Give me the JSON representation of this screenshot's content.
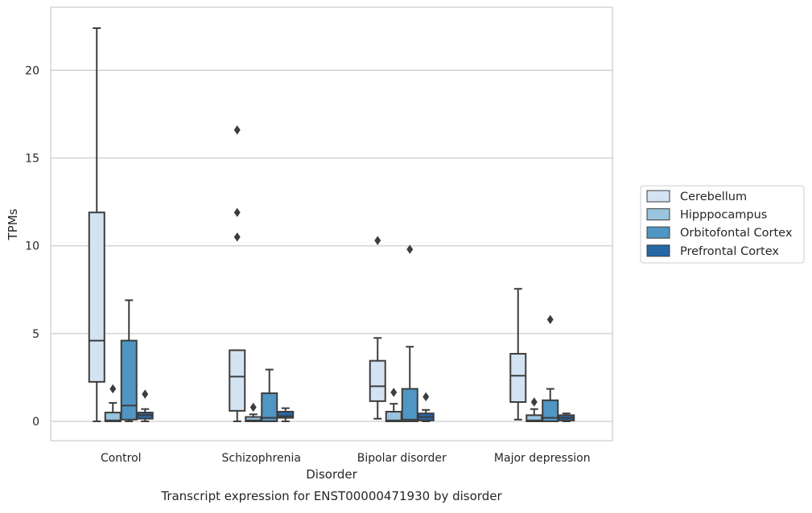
{
  "chart_data": {
    "type": "box",
    "title": "Transcript expression for ENST00000471930 by disorder",
    "xlabel": "Disorder",
    "ylabel": "TPMs",
    "ylim": [
      -1.1,
      23.4
    ],
    "yticks": [
      0,
      5,
      10,
      15,
      20
    ],
    "grid": "horizontal",
    "legend_position": "right",
    "categories": [
      "Control",
      "Schizophrenia",
      "Bipolar disorder",
      "Major depression"
    ],
    "series": [
      {
        "name": "Cerebellum",
        "color": "#d4e3f2",
        "boxes": [
          {
            "whislo": 0.0,
            "q1": 2.25,
            "med": 4.6,
            "q3": 11.9,
            "whishi": 22.4,
            "fliers": []
          },
          {
            "whislo": 0.0,
            "q1": 0.6,
            "med": 2.55,
            "q3": 4.05,
            "whishi": 4.05,
            "fliers": [
              10.5,
              11.9,
              16.6
            ]
          },
          {
            "whislo": 0.15,
            "q1": 1.15,
            "med": 2.0,
            "q3": 3.45,
            "whishi": 4.75,
            "fliers": [
              10.3
            ]
          },
          {
            "whislo": 0.1,
            "q1": 1.1,
            "med": 2.6,
            "q3": 3.85,
            "whishi": 7.55,
            "fliers": []
          }
        ]
      },
      {
        "name": "Hipppocampus",
        "color": "#9ac3dd",
        "boxes": [
          {
            "whislo": 0.0,
            "q1": 0.0,
            "med": 0.05,
            "q3": 0.5,
            "whishi": 1.05,
            "fliers": [
              1.85
            ]
          },
          {
            "whislo": 0.0,
            "q1": 0.0,
            "med": 0.05,
            "q3": 0.25,
            "whishi": 0.4,
            "fliers": [
              0.8
            ]
          },
          {
            "whislo": 0.0,
            "q1": 0.0,
            "med": 0.05,
            "q3": 0.55,
            "whishi": 1.0,
            "fliers": [
              1.65
            ]
          },
          {
            "whislo": 0.0,
            "q1": 0.0,
            "med": 0.05,
            "q3": 0.35,
            "whishi": 0.7,
            "fliers": [
              1.1
            ]
          }
        ]
      },
      {
        "name": "Orbitofontal Cortex",
        "color": "#5096c4",
        "boxes": [
          {
            "whislo": 0.0,
            "q1": 0.1,
            "med": 0.9,
            "q3": 4.6,
            "whishi": 6.9,
            "fliers": []
          },
          {
            "whislo": 0.0,
            "q1": 0.0,
            "med": 0.2,
            "q3": 1.6,
            "whishi": 2.95,
            "fliers": []
          },
          {
            "whislo": 0.0,
            "q1": 0.0,
            "med": 0.1,
            "q3": 1.85,
            "whishi": 4.25,
            "fliers": [
              9.8
            ]
          },
          {
            "whislo": 0.0,
            "q1": 0.0,
            "med": 0.2,
            "q3": 1.2,
            "whishi": 1.85,
            "fliers": [
              5.8
            ]
          }
        ]
      },
      {
        "name": "Prefrontal Cortex",
        "color": "#2667a8",
        "boxes": [
          {
            "whislo": 0.0,
            "q1": 0.15,
            "med": 0.35,
            "q3": 0.5,
            "whishi": 0.7,
            "fliers": [
              1.55
            ]
          },
          {
            "whislo": 0.0,
            "q1": 0.2,
            "med": 0.3,
            "q3": 0.55,
            "whishi": 0.75,
            "fliers": []
          },
          {
            "whislo": 0.0,
            "q1": 0.05,
            "med": 0.25,
            "q3": 0.45,
            "whishi": 0.65,
            "fliers": [
              1.4
            ]
          },
          {
            "whislo": 0.0,
            "q1": 0.05,
            "med": 0.2,
            "q3": 0.35,
            "whishi": 0.45,
            "fliers": []
          }
        ]
      }
    ],
    "colors": {
      "grid": "#cccccc",
      "frame": "#cccccc",
      "line": "#3d3d3d"
    }
  }
}
